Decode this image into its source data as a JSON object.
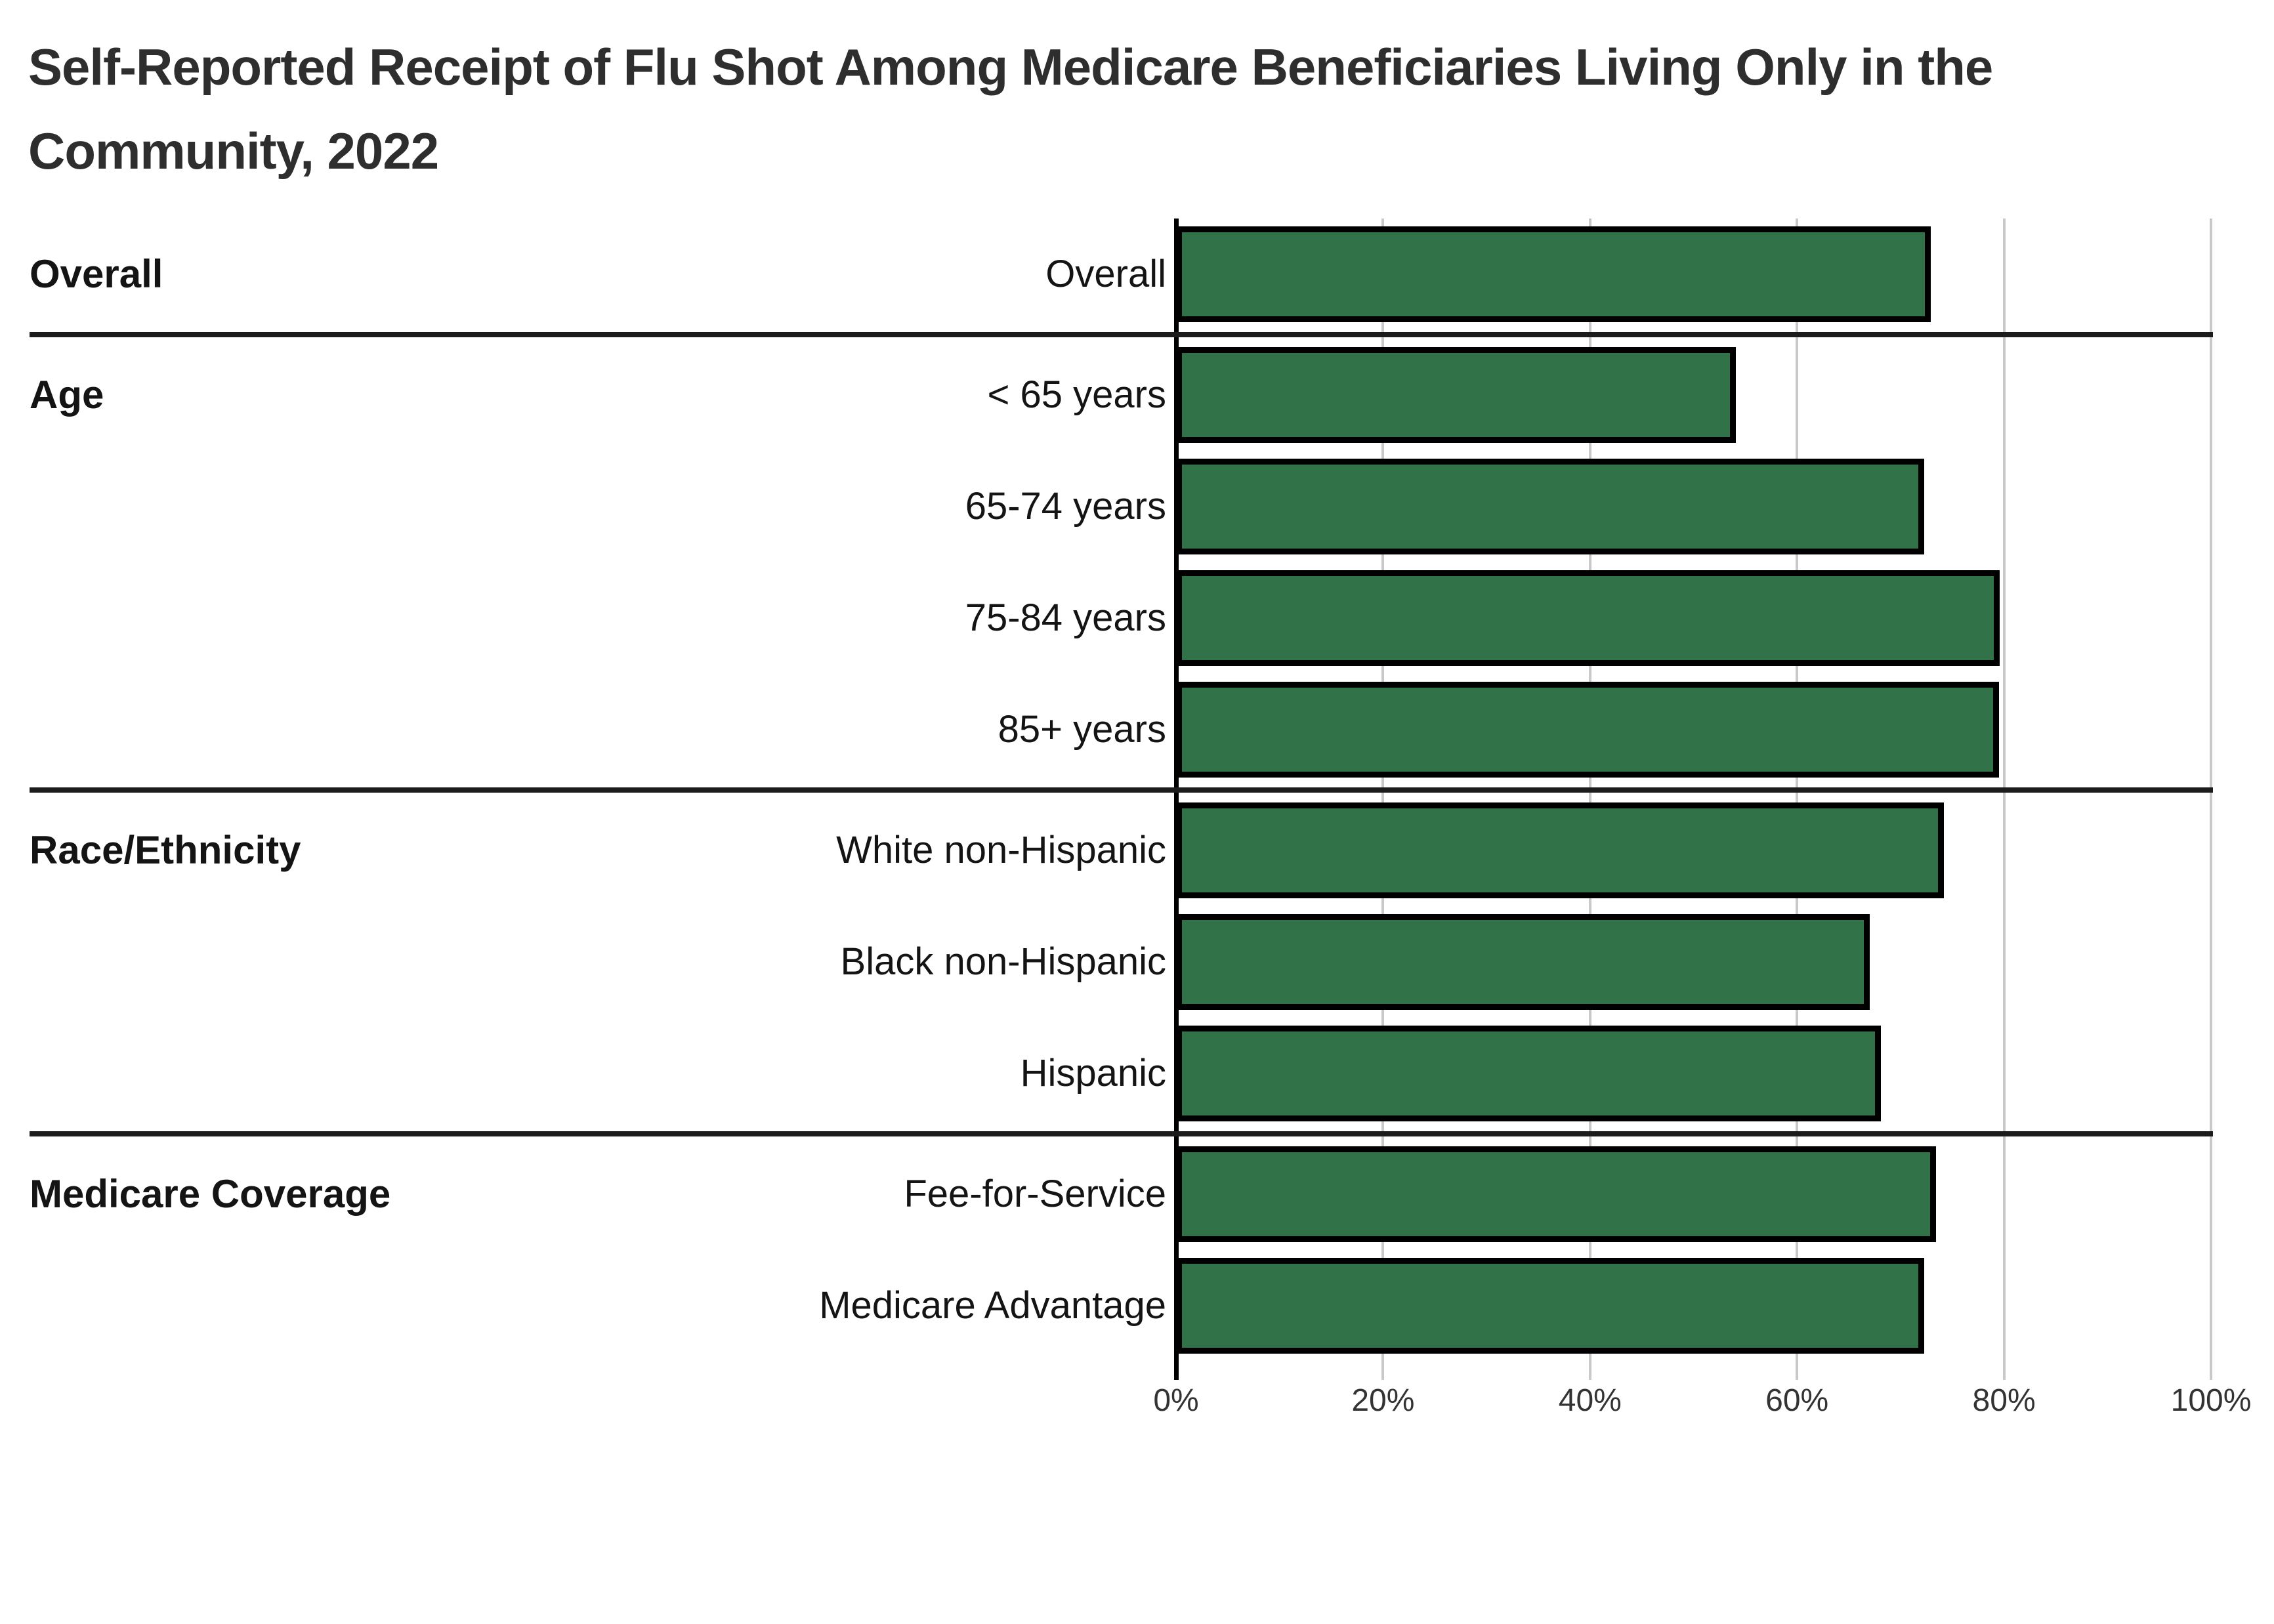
{
  "title_line1": "Self-Reported Receipt of Flu Shot Among Medicare Beneficiaries Living Only in the",
  "title_line2": "Community, 2022",
  "chart_data": {
    "type": "bar",
    "orientation": "horizontal",
    "title": "Self-Reported Receipt of Flu Shot Among Medicare Beneficiaries Living Only in the Community, 2022",
    "xlabel": "",
    "ylabel": "",
    "unit": "%",
    "xlim": [
      0,
      100
    ],
    "x_tick_values": [
      0,
      20,
      40,
      60,
      80,
      100
    ],
    "x_tick_labels": [
      "0%",
      "20%",
      "40%",
      "60%",
      "80%",
      "100%"
    ],
    "grid": true,
    "legend": "none",
    "bar_color": "#327248",
    "bar_border_color": "#000000",
    "groups": [
      {
        "label": "Overall",
        "rows": [
          {
            "label": "Overall",
            "value": 72.9
          }
        ]
      },
      {
        "label": "Age",
        "rows": [
          {
            "label": "< 65 years",
            "value": 54.1
          },
          {
            "label": "65-74 years",
            "value": 72.3
          },
          {
            "label": "75-84 years",
            "value": 79.6
          },
          {
            "label": "85+ years",
            "value": 79.5
          }
        ]
      },
      {
        "label": "Race/Ethnicity",
        "rows": [
          {
            "label": "White non-Hispanic",
            "value": 74.2
          },
          {
            "label": "Black non-Hispanic",
            "value": 67.0
          },
          {
            "label": "Hispanic",
            "value": 68.1
          }
        ]
      },
      {
        "label": "Medicare Coverage",
        "rows": [
          {
            "label": "Fee-for-Service",
            "value": 73.4
          },
          {
            "label": "Medicare Advantage",
            "value": 72.3
          }
        ]
      }
    ]
  },
  "colors": {
    "background": "#ffffff",
    "title_text": "#2e2e2e",
    "label_text": "#141414",
    "tick_text": "#333333",
    "gridline": "#c9c9c9",
    "axis_line": "#000000",
    "separator_line": "#1c1c1c",
    "bar_fill": "#327248",
    "bar_stroke": "#000000"
  }
}
